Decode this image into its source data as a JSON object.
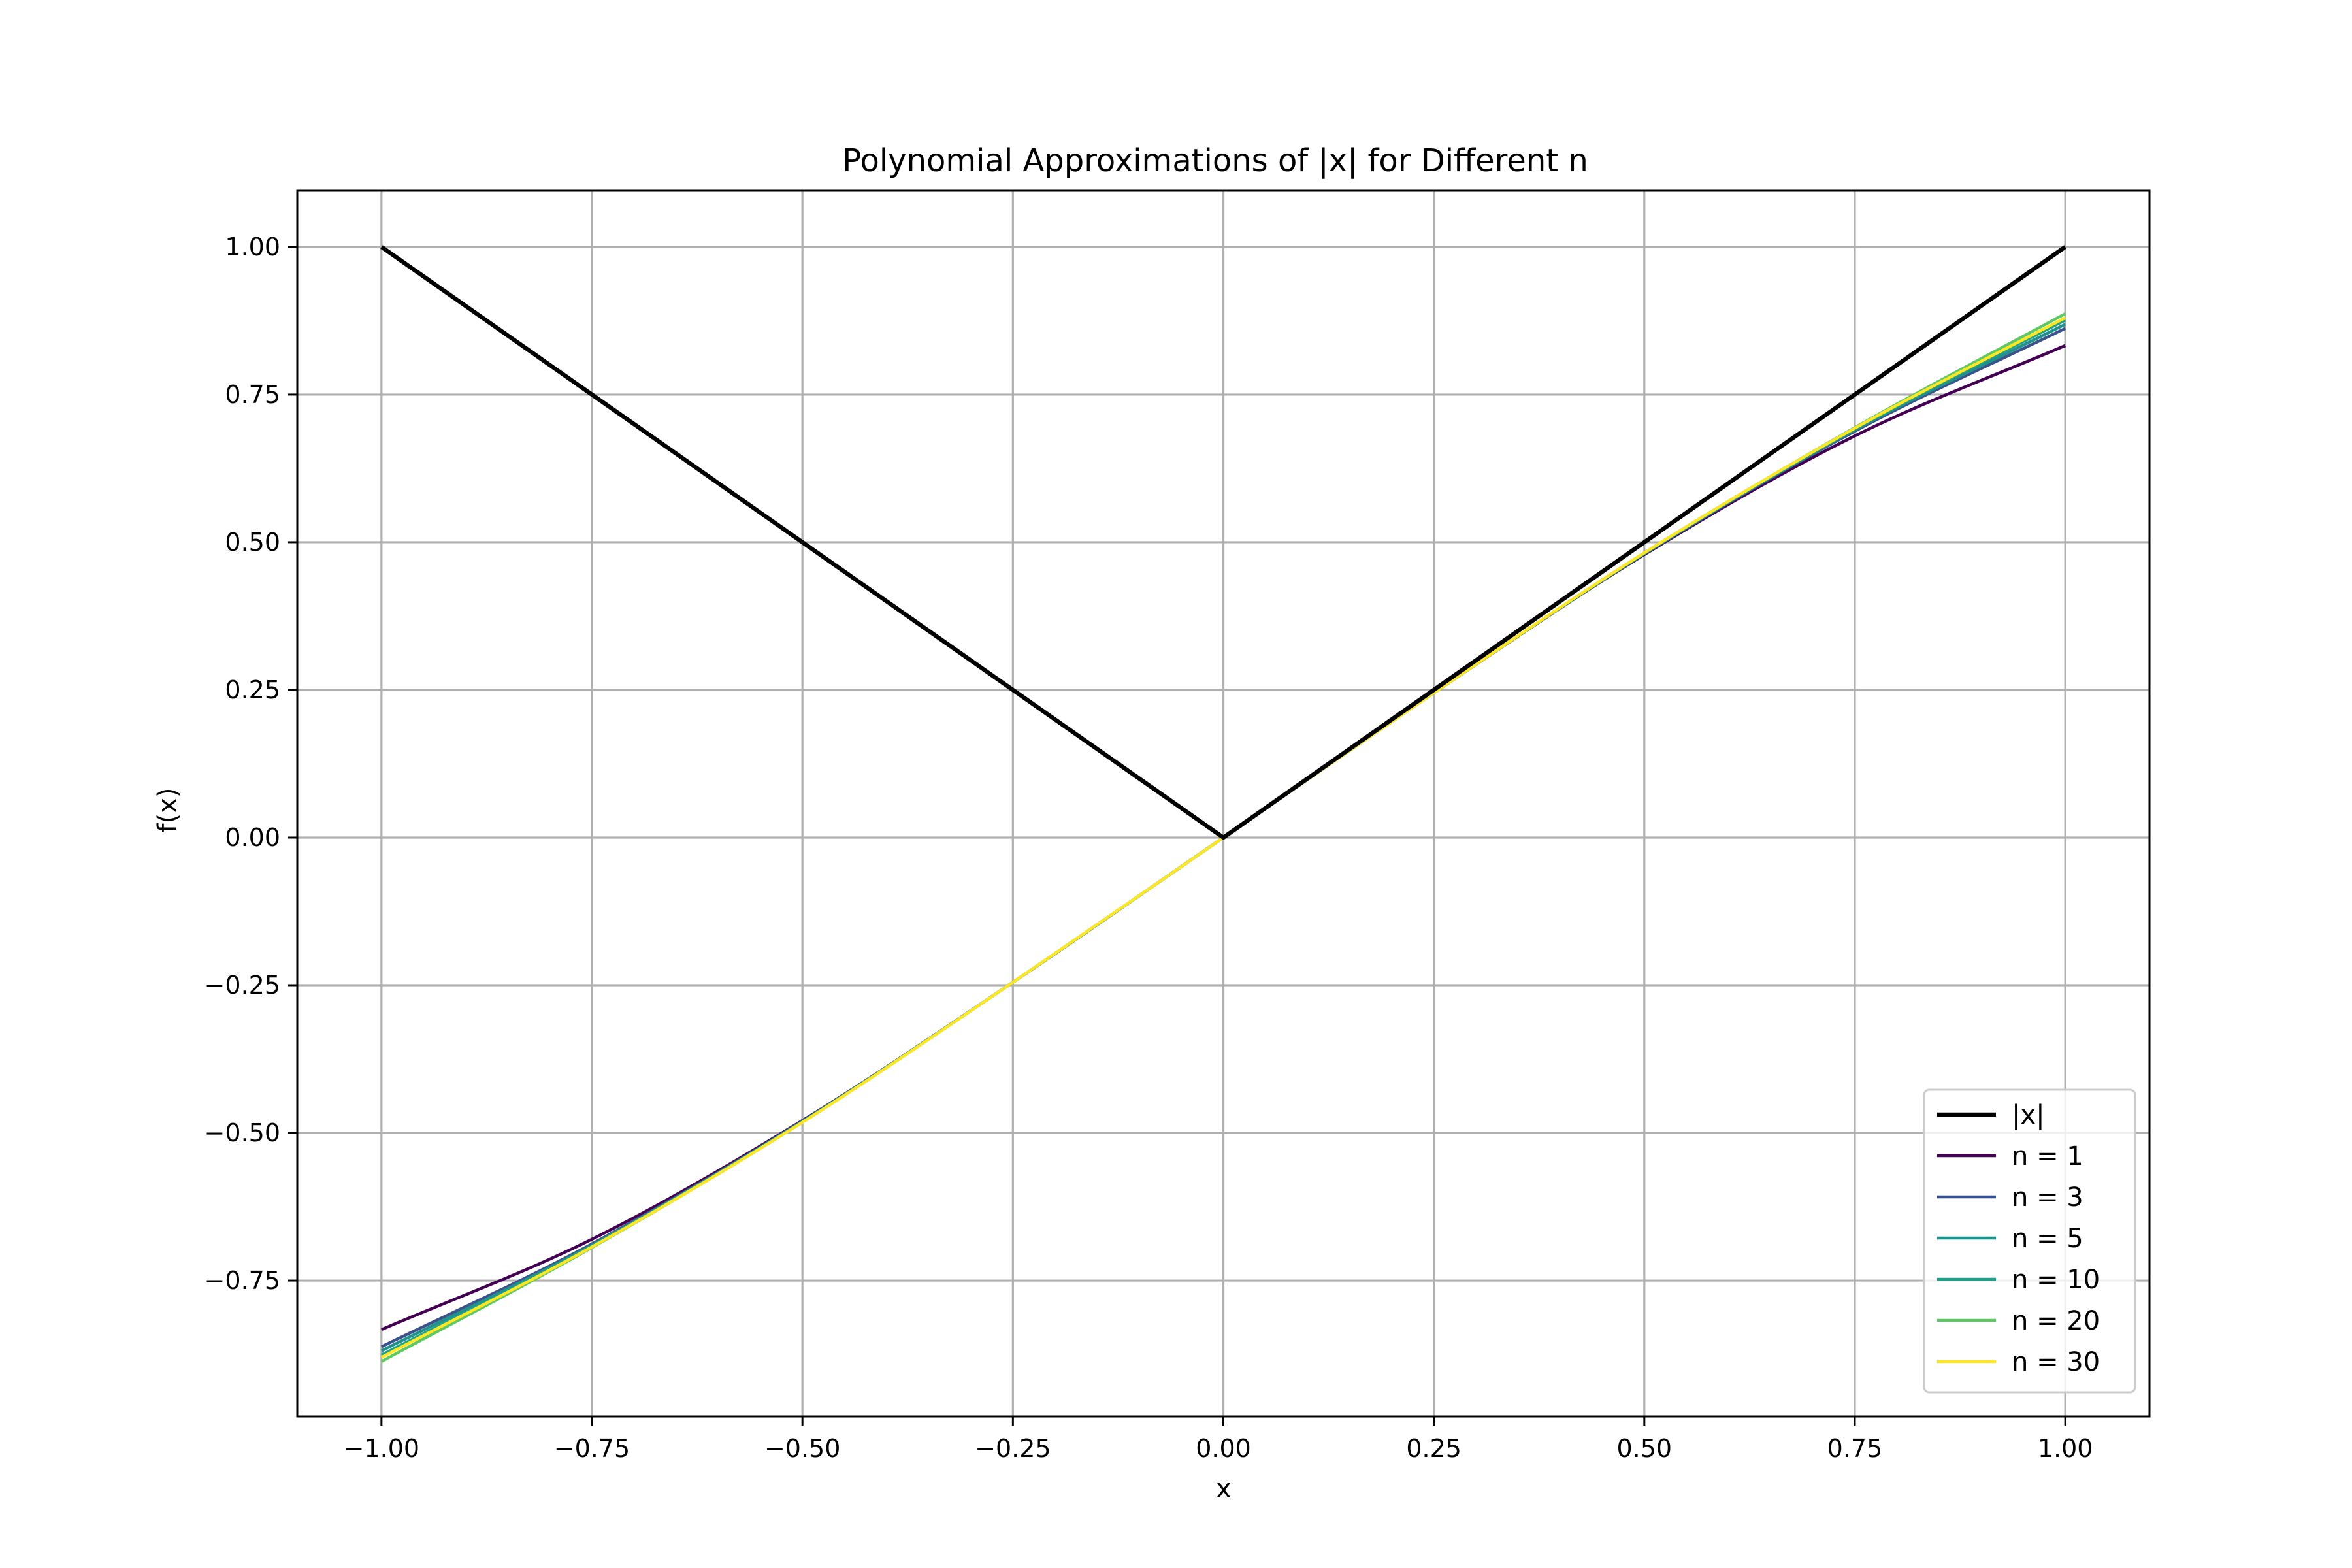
{
  "chart_data": {
    "type": "line",
    "title": "Polynomial Approximations of |x| for Different n",
    "xlabel": "x",
    "ylabel": "f(x)",
    "xlim": [
      -1.1,
      1.1
    ],
    "ylim": [
      -0.98,
      1.095
    ],
    "xticks": [
      -1.0,
      -0.75,
      -0.5,
      -0.25,
      0.0,
      0.25,
      0.5,
      0.75,
      1.0
    ],
    "xtick_labels": [
      "−1.00",
      "−0.75",
      "−0.50",
      "−0.25",
      "0.00",
      "0.25",
      "0.50",
      "0.75",
      "1.00"
    ],
    "yticks": [
      -0.75,
      -0.5,
      -0.25,
      0.0,
      0.25,
      0.5,
      0.75,
      1.0
    ],
    "ytick_labels": [
      "−0.75",
      "−0.50",
      "−0.25",
      "0.00",
      "0.25",
      "0.50",
      "0.75",
      "1.00"
    ],
    "grid": true,
    "legend_position": "lower right",
    "series": [
      {
        "name": "|x|",
        "color": "#000000",
        "width": "thick",
        "x": [
          -1.0,
          0.0,
          1.0
        ],
        "y": [
          1.0,
          0.0,
          1.0
        ]
      },
      {
        "name": "n = 1",
        "color": "#440154",
        "width": "normal",
        "x": [
          -1.0,
          -0.75,
          -0.5,
          -0.25,
          0.0,
          0.25,
          0.5,
          0.75,
          1.0
        ],
        "y": [
          -0.833,
          -0.68,
          -0.479,
          -0.245,
          0.0,
          0.245,
          0.479,
          0.68,
          0.833
        ]
      },
      {
        "name": "n = 3",
        "color": "#3b528b",
        "width": "normal",
        "x": [
          -1.0,
          -0.75,
          -0.5,
          -0.25,
          0.0,
          0.25,
          0.5,
          0.75,
          1.0
        ],
        "y": [
          -0.862,
          -0.688,
          -0.48,
          -0.245,
          0.0,
          0.245,
          0.48,
          0.688,
          0.862
        ]
      },
      {
        "name": "n = 5",
        "color": "#21918c",
        "width": "normal",
        "x": [
          -1.0,
          -0.75,
          -0.5,
          -0.25,
          0.0,
          0.25,
          0.5,
          0.75,
          1.0
        ],
        "y": [
          -0.869,
          -0.69,
          -0.481,
          -0.245,
          0.0,
          0.245,
          0.481,
          0.69,
          0.869
        ]
      },
      {
        "name": "n = 10",
        "color": "#1fa187",
        "width": "normal",
        "x": [
          -1.0,
          -0.75,
          -0.5,
          -0.25,
          0.0,
          0.25,
          0.5,
          0.75,
          1.0
        ],
        "y": [
          -0.876,
          -0.692,
          -0.481,
          -0.245,
          0.0,
          0.245,
          0.481,
          0.692,
          0.876
        ]
      },
      {
        "name": "n = 20",
        "color": "#5ec962",
        "width": "normal",
        "x": [
          -1.0,
          -0.75,
          -0.5,
          -0.25,
          0.0,
          0.25,
          0.5,
          0.75,
          1.0
        ],
        "y": [
          -0.887,
          -0.694,
          -0.482,
          -0.245,
          0.0,
          0.245,
          0.482,
          0.694,
          0.887
        ]
      },
      {
        "name": "n = 30",
        "color": "#fde725",
        "width": "normal",
        "x": [
          -1.0,
          -0.75,
          -0.5,
          -0.25,
          0.0,
          0.25,
          0.5,
          0.75,
          1.0
        ],
        "y": [
          -0.88,
          -0.693,
          -0.482,
          -0.245,
          0.0,
          0.245,
          0.482,
          0.693,
          0.88
        ]
      }
    ]
  }
}
